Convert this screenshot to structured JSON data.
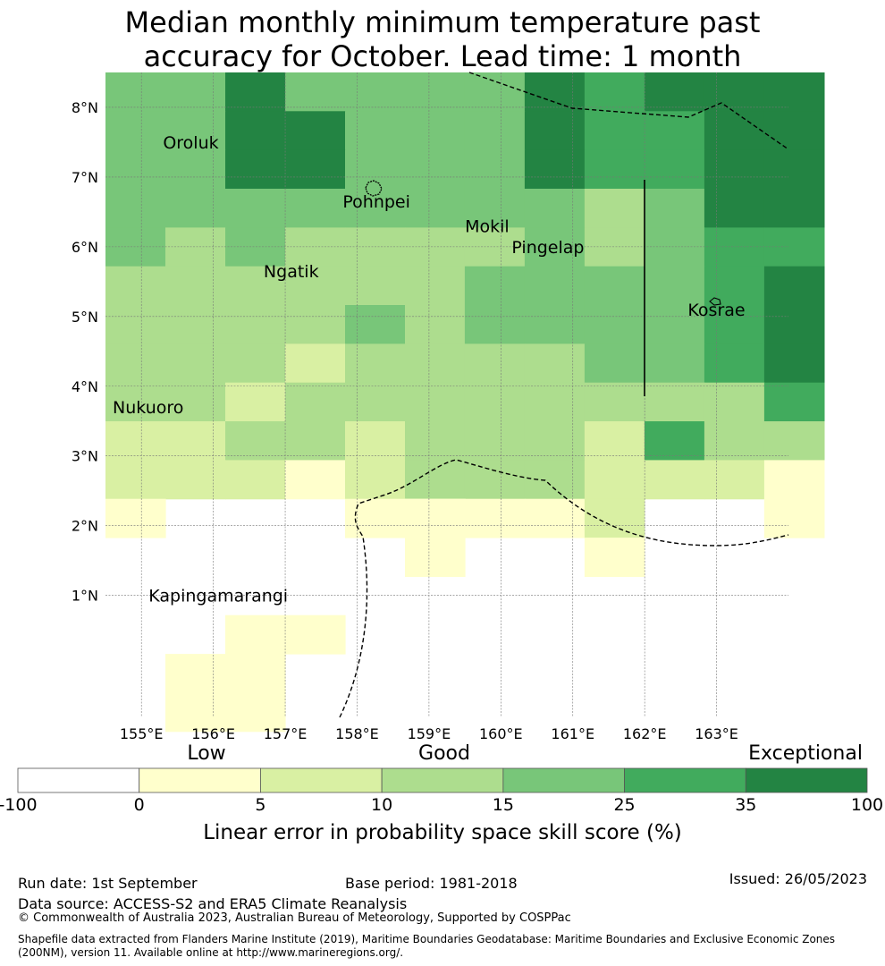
{
  "title_line1": "Median monthly minimum temperature past",
  "title_line2": "accuracy for October. Lead time: 1 month",
  "map": {
    "lon_min": 154.5,
    "lon_max": 164.0,
    "lat_min": -0.75,
    "lat_max": 8.5,
    "lon_ticks": [
      "155°E",
      "156°E",
      "157°E",
      "158°E",
      "159°E",
      "160°E",
      "161°E",
      "162°E",
      "163°E"
    ],
    "lon_tick_values": [
      155,
      156,
      157,
      158,
      159,
      160,
      161,
      162,
      163
    ],
    "lat_ticks": [
      "8°N",
      "7°N",
      "6°N",
      "5°N",
      "4°N",
      "3°N",
      "2°N",
      "1°N"
    ],
    "lat_tick_values": [
      8,
      7,
      6,
      5,
      4,
      3,
      2,
      1
    ],
    "grid_lon_start": 154.5,
    "grid_lat_top": 8.5,
    "cell_lon": 0.833,
    "cell_lat": 0.556,
    "grid": [
      [
        3,
        3,
        5,
        3,
        3,
        3,
        3,
        5,
        4,
        5,
        5,
        5
      ],
      [
        3,
        3,
        5,
        5,
        3,
        3,
        3,
        5,
        4,
        4,
        5,
        5
      ],
      [
        3,
        3,
        5,
        5,
        3,
        3,
        3,
        5,
        4,
        4,
        5,
        5
      ],
      [
        3,
        3,
        3,
        3,
        3,
        3,
        3,
        3,
        2,
        3,
        5,
        5
      ],
      [
        3,
        2,
        3,
        2,
        2,
        2,
        2,
        3,
        2,
        3,
        4,
        4
      ],
      [
        2,
        2,
        2,
        2,
        2,
        2,
        3,
        3,
        3,
        3,
        4,
        5
      ],
      [
        2,
        2,
        2,
        2,
        3,
        2,
        3,
        3,
        3,
        3,
        4,
        5
      ],
      [
        2,
        2,
        2,
        1,
        2,
        2,
        2,
        2,
        3,
        3,
        4,
        5
      ],
      [
        2,
        2,
        1,
        2,
        2,
        2,
        2,
        2,
        2,
        2,
        2,
        4
      ],
      [
        1,
        1,
        2,
        2,
        1,
        2,
        2,
        2,
        1,
        4,
        2,
        2
      ],
      [
        1,
        1,
        1,
        0,
        1,
        2,
        2,
        2,
        1,
        1,
        1,
        0
      ],
      [
        0,
        -1,
        -1,
        -1,
        -1,
        0,
        0,
        0,
        1,
        -1,
        -1,
        0
      ],
      [
        -1,
        -1,
        -1,
        -1,
        -1,
        0,
        -1,
        -1,
        -1,
        -1,
        -1,
        -1
      ],
      [
        -1,
        -1,
        -1,
        -1,
        -1,
        -1,
        -1,
        -1,
        -1,
        -1,
        -1,
        -1
      ],
      [
        -1,
        -1,
        -1,
        -1,
        -1,
        -1,
        -1,
        -1,
        -1,
        -1,
        -1,
        -1
      ],
      [
        -1,
        -1,
        -1,
        -1,
        -1,
        -1,
        -1,
        -1,
        -1,
        -1,
        -1,
        -1
      ]
    ],
    "extra_cells": [
      {
        "row": 11,
        "col": 4,
        "level": 0
      },
      {
        "row": 11,
        "col": 5,
        "level": 0
      },
      {
        "row": 11,
        "col": 6,
        "level": -1
      },
      {
        "row": 11,
        "col": 7,
        "level": -1
      },
      {
        "row": 11,
        "col": 8,
        "level": -1
      },
      {
        "row": 11,
        "col": 9,
        "level": -1
      },
      {
        "row": 11,
        "col": 10,
        "level": -1
      },
      {
        "row": 11,
        "col": 11,
        "level": 0
      },
      {
        "row": 12,
        "col": 5,
        "level": -1
      },
      {
        "row": 12,
        "col": 6,
        "level": -1
      },
      {
        "row": 12,
        "col": 7,
        "level": -1
      },
      {
        "row": 12,
        "col": 8,
        "level": 0
      },
      {
        "row": 12,
        "col": 9,
        "level": -1
      },
      {
        "row": 12,
        "col": 10,
        "level": -1
      },
      {
        "row": 12,
        "col": 11,
        "level": -1
      },
      {
        "row": 14,
        "col": 1,
        "level": -1
      },
      {
        "row": 14,
        "col": 2,
        "level": 0
      },
      {
        "row": 14,
        "col": 3,
        "level": 0
      },
      {
        "row": 15,
        "col": 1,
        "level": 0
      },
      {
        "row": 15,
        "col": 2,
        "level": 0
      },
      {
        "row": 16,
        "col": 1,
        "level": 0
      },
      {
        "row": 16,
        "col": 2,
        "level": 0
      }
    ],
    "places": [
      {
        "name": "Oroluk",
        "lon": 155.3,
        "lat": 7.5
      },
      {
        "name": "Pohnpei",
        "lon": 157.8,
        "lat": 6.65
      },
      {
        "name": "Mokil",
        "lon": 159.5,
        "lat": 6.3
      },
      {
        "name": "Pingelap",
        "lon": 160.15,
        "lat": 6.0
      },
      {
        "name": "Ngatik",
        "lon": 156.7,
        "lat": 5.65
      },
      {
        "name": "Kosrae",
        "lon": 162.6,
        "lat": 5.1
      },
      {
        "name": "Nukuoro",
        "lon": 154.6,
        "lat": 3.7
      },
      {
        "name": "Kapingamarangi",
        "lon": 155.1,
        "lat": 1.0
      }
    ]
  },
  "colorbar": {
    "categories": [
      {
        "label": "Low",
        "position_value": 2.5
      },
      {
        "label": "Good",
        "position_value": 12.5
      },
      {
        "label": "Exceptional",
        "position_value": 35
      }
    ],
    "ticks": [
      "-100",
      "0",
      "5",
      "10",
      "15",
      "25",
      "35",
      "100"
    ],
    "colors": [
      "#ffffff",
      "#ffffcc",
      "#d9f0a3",
      "#addd8e",
      "#78c679",
      "#41ab5d",
      "#238443"
    ],
    "title": "Linear error in probability space skill score (%)"
  },
  "footer": {
    "run_date": "Run date: 1st September",
    "base_period": "Base period: 1981-2018",
    "issued": "Issued: 26/05/2023",
    "data_source": "Data source: ACCESS-S2 and ERA5 Climate Reanalysis",
    "copyright": "© Commonwealth of Australia 2023, Australian Bureau of Meteorology, Supported by COSPPac",
    "shapefile_1": "Shapefile data extracted from Flanders Marine Institute (2019), Maritime Boundaries Geodatabase: Maritime Boundaries and Exclusive Economic Zones",
    "shapefile_2": "(200NM), version 11. Available online at http://www.marineregions.org/."
  }
}
